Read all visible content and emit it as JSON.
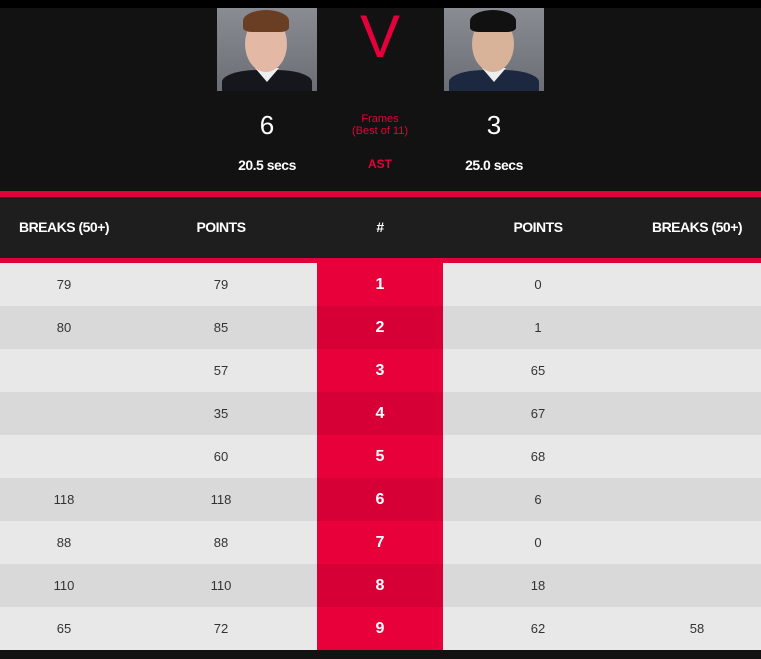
{
  "match": {
    "vs": "V",
    "player1": {
      "frames": "6",
      "avg_shot_time": "20.5 secs"
    },
    "player2": {
      "frames": "3",
      "avg_shot_time": "25.0 secs"
    },
    "frames_label": "Frames",
    "best_of": "(Best of 11)",
    "ast_label": "AST"
  },
  "table": {
    "headers": [
      "BREAKS (50+)",
      "POINTS",
      "#",
      "POINTS",
      "BREAKS (50+)"
    ],
    "rows": [
      [
        "79",
        "79",
        "1",
        "0",
        ""
      ],
      [
        "80",
        "85",
        "2",
        "1",
        ""
      ],
      [
        "",
        "57",
        "3",
        "65",
        ""
      ],
      [
        "",
        "35",
        "4",
        "67",
        ""
      ],
      [
        "",
        "60",
        "5",
        "68",
        ""
      ],
      [
        "118",
        "118",
        "6",
        "6",
        ""
      ],
      [
        "88",
        "88",
        "7",
        "0",
        ""
      ],
      [
        "110",
        "110",
        "8",
        "18",
        ""
      ],
      [
        "65",
        "72",
        "9",
        "62",
        "58"
      ]
    ]
  },
  "colors": {
    "accent": "#e4003a",
    "row_light": "#e8e8e8",
    "row_dark": "#d9d9d9"
  }
}
